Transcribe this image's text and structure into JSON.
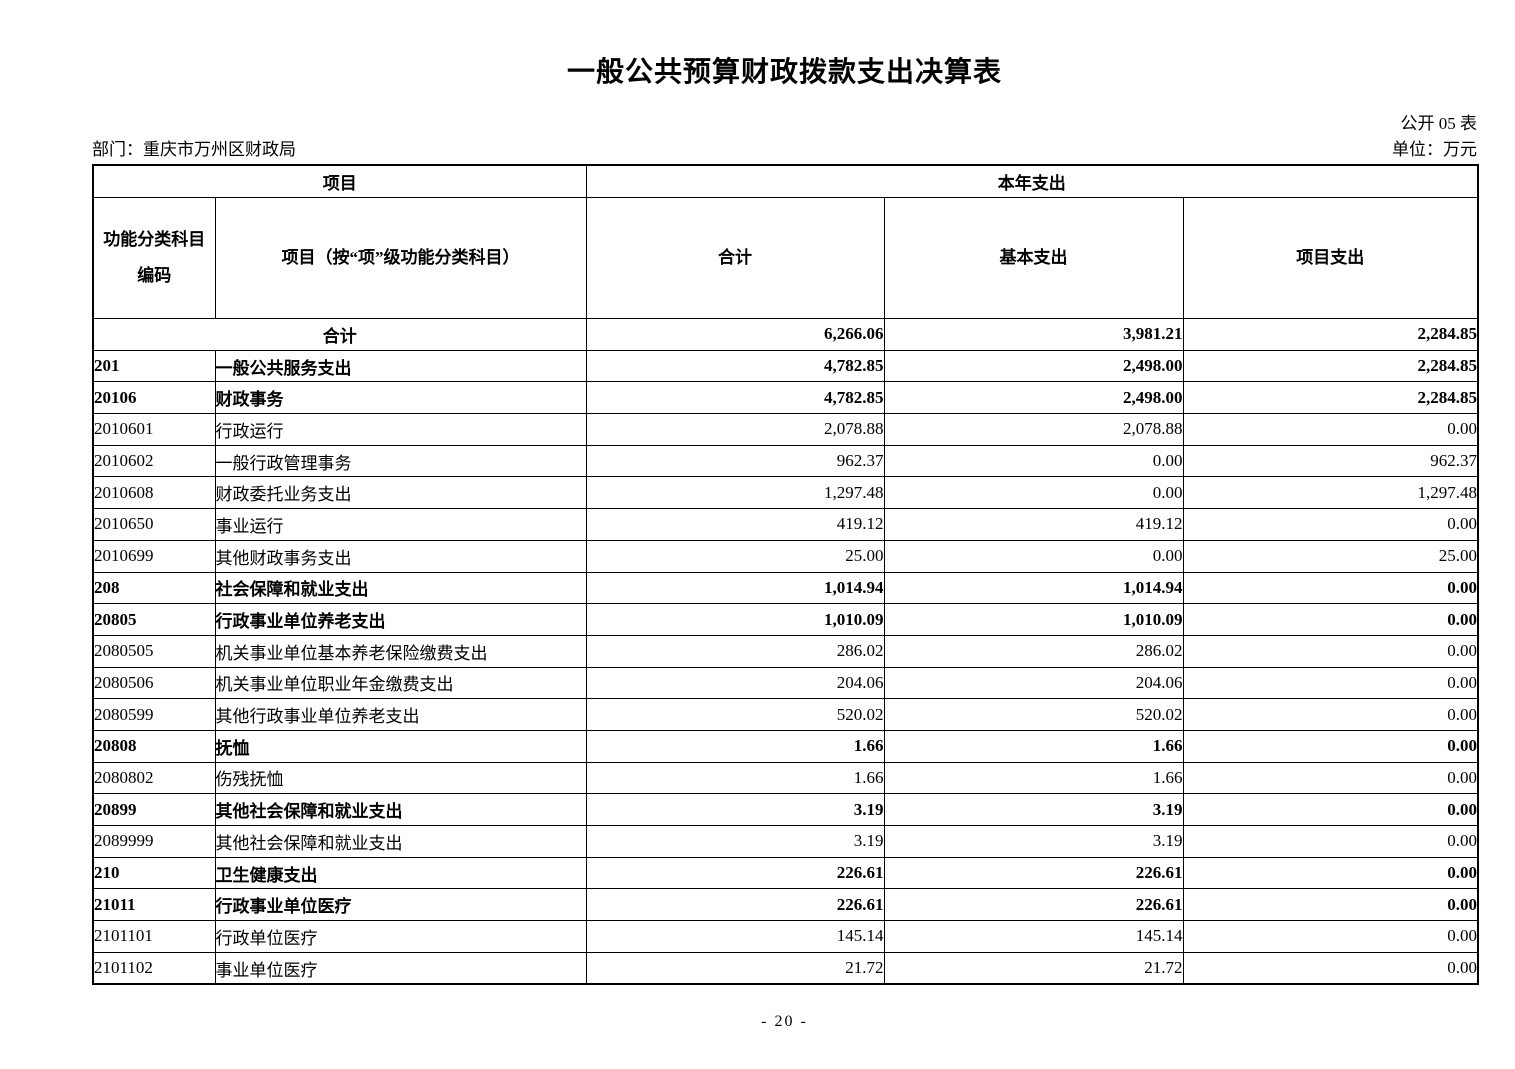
{
  "page": {
    "title": "一般公共预算财政拨款支出决算表",
    "form_label": "公开 05 表",
    "department": "部门：重庆市万州区财政局",
    "unit": "单位：万元",
    "page_number": "- 20 -"
  },
  "table": {
    "header": {
      "project_group": "项目",
      "year_expense_group": "本年支出",
      "code": "功能分类科目\n编码",
      "item": "项目（按“项”级功能分类科目）",
      "total": "合计",
      "basic": "基本支出",
      "project": "项目支出"
    },
    "rows": [
      {
        "code": "",
        "name": "合计",
        "total": "6,266.06",
        "basic": "3,981.21",
        "project": "2,284.85",
        "bold": true,
        "summary": true
      },
      {
        "code": "201",
        "name": "一般公共服务支出",
        "total": "4,782.85",
        "basic": "2,498.00",
        "project": "2,284.85",
        "bold": true
      },
      {
        "code": "20106",
        "name": "财政事务",
        "total": "4,782.85",
        "basic": "2,498.00",
        "project": "2,284.85",
        "bold": true
      },
      {
        "code": "2010601",
        "name": "行政运行",
        "total": "2,078.88",
        "basic": "2,078.88",
        "project": "0.00",
        "bold": false
      },
      {
        "code": "2010602",
        "name": "一般行政管理事务",
        "total": "962.37",
        "basic": "0.00",
        "project": "962.37",
        "bold": false
      },
      {
        "code": "2010608",
        "name": "财政委托业务支出",
        "total": "1,297.48",
        "basic": "0.00",
        "project": "1,297.48",
        "bold": false
      },
      {
        "code": "2010650",
        "name": "事业运行",
        "total": "419.12",
        "basic": "419.12",
        "project": "0.00",
        "bold": false
      },
      {
        "code": "2010699",
        "name": "其他财政事务支出",
        "total": "25.00",
        "basic": "0.00",
        "project": "25.00",
        "bold": false
      },
      {
        "code": "208",
        "name": "社会保障和就业支出",
        "total": "1,014.94",
        "basic": "1,014.94",
        "project": "0.00",
        "bold": true
      },
      {
        "code": "20805",
        "name": "行政事业单位养老支出",
        "total": "1,010.09",
        "basic": "1,010.09",
        "project": "0.00",
        "bold": true
      },
      {
        "code": "2080505",
        "name": "机关事业单位基本养老保险缴费支出",
        "total": "286.02",
        "basic": "286.02",
        "project": "0.00",
        "bold": false
      },
      {
        "code": "2080506",
        "name": "机关事业单位职业年金缴费支出",
        "total": "204.06",
        "basic": "204.06",
        "project": "0.00",
        "bold": false
      },
      {
        "code": "2080599",
        "name": "其他行政事业单位养老支出",
        "total": "520.02",
        "basic": "520.02",
        "project": "0.00",
        "bold": false
      },
      {
        "code": "20808",
        "name": "抚恤",
        "total": "1.66",
        "basic": "1.66",
        "project": "0.00",
        "bold": true
      },
      {
        "code": "2080802",
        "name": "伤残抚恤",
        "total": "1.66",
        "basic": "1.66",
        "project": "0.00",
        "bold": false
      },
      {
        "code": "20899",
        "name": "其他社会保障和就业支出",
        "total": "3.19",
        "basic": "3.19",
        "project": "0.00",
        "bold": true
      },
      {
        "code": "2089999",
        "name": "其他社会保障和就业支出",
        "total": "3.19",
        "basic": "3.19",
        "project": "0.00",
        "bold": false
      },
      {
        "code": "210",
        "name": "卫生健康支出",
        "total": "226.61",
        "basic": "226.61",
        "project": "0.00",
        "bold": true
      },
      {
        "code": "21011",
        "name": "行政事业单位医疗",
        "total": "226.61",
        "basic": "226.61",
        "project": "0.00",
        "bold": true
      },
      {
        "code": "2101101",
        "name": "行政单位医疗",
        "total": "145.14",
        "basic": "145.14",
        "project": "0.00",
        "bold": false
      },
      {
        "code": "2101102",
        "name": "事业单位医疗",
        "total": "21.72",
        "basic": "21.72",
        "project": "0.00",
        "bold": false
      }
    ]
  }
}
